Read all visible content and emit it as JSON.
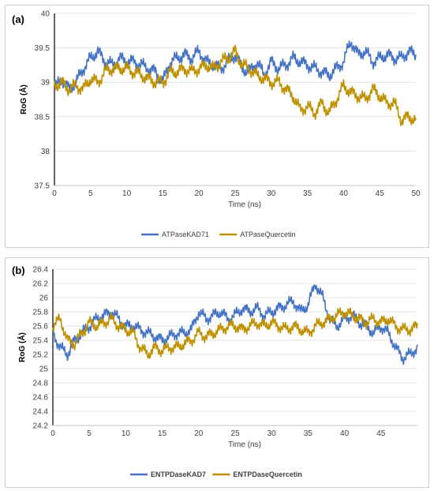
{
  "colors": {
    "s1": "#4472C4",
    "s2": "#BF9000",
    "s2b": "#ED7D31",
    "axis": "#000000"
  },
  "chart_data": [
    {
      "type": "line",
      "panel_label": "(a)",
      "xlabel": "Time (ns)",
      "ylabel": "RoG (Å)",
      "xlim": [
        0,
        50
      ],
      "ylim": [
        37.5,
        40
      ],
      "xticks": [
        0,
        5,
        10,
        15,
        20,
        25,
        30,
        35,
        40,
        45,
        50
      ],
      "yticks": [
        37.5,
        38,
        38.5,
        39,
        39.5,
        40
      ],
      "ytick_labels": [
        "37.5",
        "38",
        "38.5",
        "39",
        "39.5",
        "40"
      ],
      "legend_position": "bottom",
      "x": [
        0,
        1,
        2,
        3,
        4,
        5,
        6,
        7,
        8,
        9,
        10,
        11,
        12,
        13,
        14,
        15,
        16,
        17,
        18,
        19,
        20,
        21,
        22,
        23,
        24,
        25,
        26,
        27,
        28,
        29,
        30,
        31,
        32,
        33,
        34,
        35,
        36,
        37,
        38,
        39,
        40,
        41,
        42,
        43,
        44,
        45,
        46,
        47,
        48,
        49,
        50
      ],
      "series": [
        {
          "name": "ATPaseKAD71",
          "values": [
            38.9,
            39.05,
            38.9,
            39.0,
            39.2,
            39.35,
            39.45,
            39.3,
            39.25,
            39.35,
            39.3,
            39.3,
            39.25,
            39.2,
            39.15,
            39.0,
            39.3,
            39.35,
            39.4,
            39.35,
            39.45,
            39.3,
            39.25,
            39.2,
            39.3,
            39.4,
            39.2,
            39.15,
            39.3,
            39.1,
            39.3,
            39.2,
            39.25,
            39.35,
            39.3,
            39.25,
            39.2,
            39.15,
            39.1,
            39.2,
            39.3,
            39.6,
            39.4,
            39.45,
            39.3,
            39.35,
            39.4,
            39.35,
            39.35,
            39.45,
            39.4
          ]
        },
        {
          "name": "ATPaseQuercetin",
          "values": [
            38.95,
            39.0,
            38.9,
            38.95,
            38.9,
            39.05,
            39.0,
            39.15,
            39.2,
            39.2,
            39.2,
            39.15,
            39.1,
            39.05,
            39.0,
            39.0,
            39.15,
            39.15,
            39.2,
            39.15,
            39.2,
            39.25,
            39.2,
            39.3,
            39.35,
            39.45,
            39.25,
            39.2,
            39.1,
            39.05,
            39.0,
            39.0,
            38.9,
            38.8,
            38.6,
            38.65,
            38.55,
            38.7,
            38.55,
            38.75,
            38.95,
            38.85,
            38.8,
            38.75,
            38.9,
            38.8,
            38.7,
            38.7,
            38.45,
            38.5,
            38.45
          ]
        }
      ]
    },
    {
      "type": "line",
      "panel_label": "(b)",
      "xlabel": "Time (ns)",
      "ylabel": "RoG (Å)",
      "xlim": [
        0,
        50
      ],
      "ylim": [
        24.2,
        26.4
      ],
      "xticks": [
        0,
        5,
        10,
        15,
        20,
        25,
        30,
        35,
        40,
        45
      ],
      "yticks": [
        24.2,
        24.4,
        24.6,
        24.8,
        25,
        25.2,
        25.4,
        25.6,
        25.8,
        26,
        26.2,
        26.4
      ],
      "ytick_labels": [
        "24.2",
        "24.4",
        "24.6",
        "24.8",
        "25",
        "25.2",
        "25.4",
        "25.6",
        "25.8",
        "26",
        "26.2",
        "26.4"
      ],
      "legend_position": "bottom",
      "x": [
        0,
        1,
        2,
        3,
        4,
        5,
        6,
        7,
        8,
        9,
        10,
        11,
        12,
        13,
        14,
        15,
        16,
        17,
        18,
        19,
        20,
        21,
        22,
        23,
        24,
        25,
        26,
        27,
        28,
        29,
        30,
        31,
        32,
        33,
        34,
        35,
        36,
        37,
        38,
        39,
        40,
        41,
        42,
        43,
        44,
        45,
        46,
        47,
        48,
        49,
        50
      ],
      "series": [
        {
          "name": "ENTPDaseKAD7",
          "values": [
            25.5,
            25.3,
            25.2,
            25.4,
            25.5,
            25.6,
            25.7,
            25.75,
            25.8,
            25.7,
            25.6,
            25.6,
            25.55,
            25.5,
            25.45,
            25.4,
            25.45,
            25.5,
            25.5,
            25.55,
            25.8,
            25.7,
            25.75,
            25.8,
            25.7,
            25.75,
            25.85,
            25.8,
            25.85,
            25.75,
            25.8,
            25.85,
            25.9,
            25.95,
            25.8,
            25.9,
            26.2,
            26.0,
            25.7,
            25.6,
            25.7,
            25.75,
            25.65,
            25.6,
            25.5,
            25.6,
            25.5,
            25.3,
            25.15,
            25.2,
            25.3
          ]
        },
        {
          "name": "ENTPDaseQuercetin",
          "values": [
            25.6,
            25.7,
            25.4,
            25.35,
            25.5,
            25.65,
            25.6,
            25.65,
            25.7,
            25.6,
            25.55,
            25.5,
            25.3,
            25.2,
            25.3,
            25.25,
            25.3,
            25.3,
            25.35,
            25.4,
            25.5,
            25.45,
            25.5,
            25.55,
            25.6,
            25.6,
            25.55,
            25.6,
            25.65,
            25.6,
            25.65,
            25.6,
            25.55,
            25.6,
            25.55,
            25.5,
            25.6,
            25.65,
            25.7,
            25.75,
            25.8,
            25.75,
            25.7,
            25.65,
            25.7,
            25.65,
            25.7,
            25.6,
            25.55,
            25.55,
            25.6
          ]
        }
      ]
    }
  ]
}
